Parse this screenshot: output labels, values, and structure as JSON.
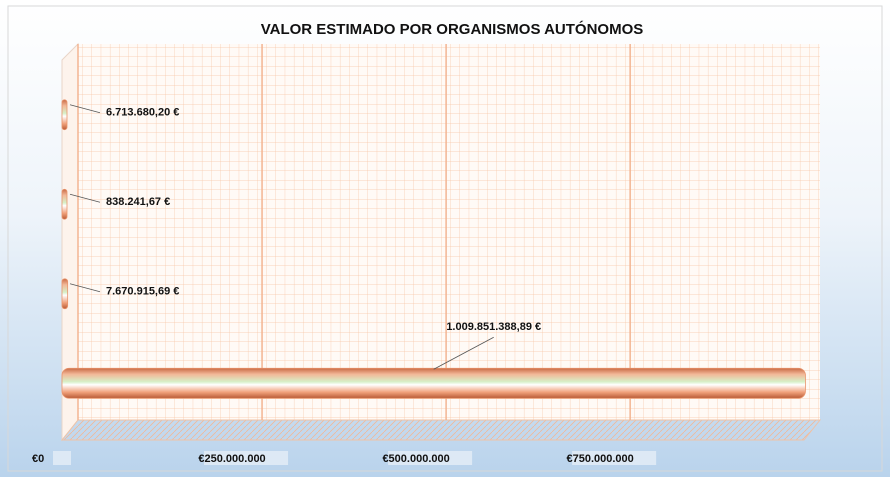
{
  "chart_data": {
    "type": "bar",
    "orientation": "horizontal",
    "title": "VALOR ESTIMADO POR ORGANISMOS AUTÓNOMOS",
    "categories": [
      null,
      null,
      null,
      null
    ],
    "values": [
      6713680.2,
      838241.67,
      7670915.69,
      1009851388.89
    ],
    "value_labels": [
      "6.713.680,20 €",
      "838.241,67 €",
      "7.670.915,69 €",
      "1.009.851.388,89 €"
    ],
    "color": "#e8946c",
    "xlim": [
      0,
      1050000000
    ],
    "xticks": [
      {
        "value": 0,
        "label": "€0"
      },
      {
        "value": 250000000,
        "label": "€250.000.000"
      },
      {
        "value": 500000000,
        "label": "€500.000.000"
      },
      {
        "value": 750000000,
        "label": "€750.000.000"
      }
    ],
    "grid": true
  }
}
